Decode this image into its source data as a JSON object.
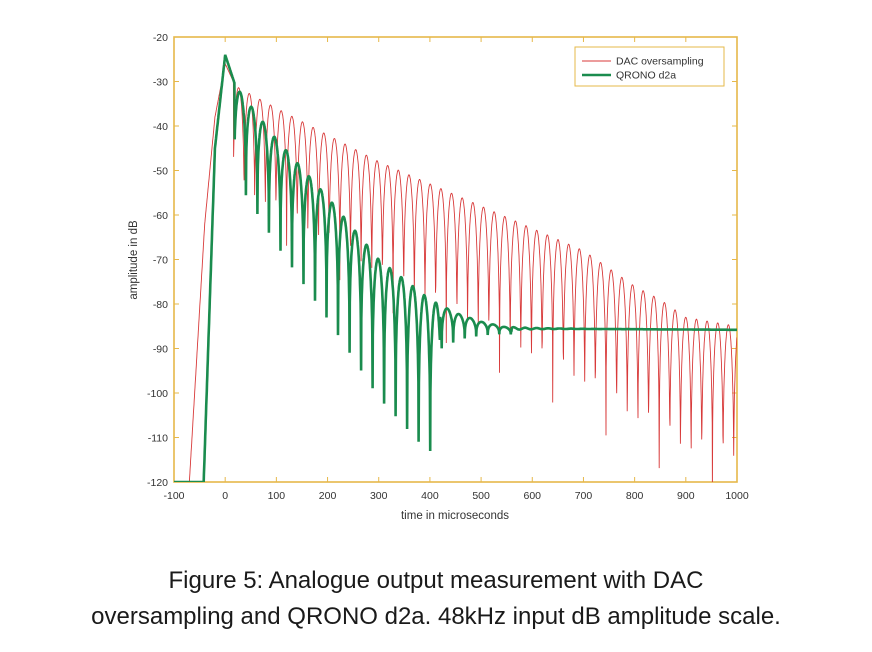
{
  "chart_data": {
    "type": "line",
    "title": "",
    "xlabel": "time in microseconds",
    "ylabel": "amplitude in dB",
    "xlim": [
      -100,
      1000
    ],
    "ylim": [
      -120,
      -20
    ],
    "xticks": [
      -100,
      0,
      100,
      200,
      300,
      400,
      500,
      600,
      700,
      800,
      900,
      1000
    ],
    "yticks": [
      -20,
      -30,
      -40,
      -50,
      -60,
      -70,
      -80,
      -90,
      -100,
      -110,
      -120
    ],
    "grid": false,
    "legend_position": "top-right",
    "series": [
      {
        "name": "DAC oversampling",
        "color": "#d83a3a",
        "description": "decaying ringing envelope ~ -31 dB at 20 us to -85 dB at 1000 us, notches every ~20.8 us",
        "envelope": {
          "x": [
            -70,
            -40,
            -20,
            0,
            20,
            100,
            200,
            300,
            400,
            500,
            600,
            700,
            800,
            850,
            900,
            1000
          ],
          "y": [
            -120,
            -62,
            -38,
            -26,
            -31,
            -36,
            -42,
            -48,
            -53,
            -58,
            -63,
            -68,
            -76,
            -79,
            -83,
            -85
          ]
        },
        "notch_spacing": 20.8
      },
      {
        "name": "QRONO d2a",
        "color": "#1a8c4e",
        "description": "faster decaying ringing settling to about -86 dB after ~560 us",
        "envelope": {
          "x": [
            -42,
            -20,
            0,
            20,
            100,
            200,
            300,
            400,
            450,
            500,
            560,
            1000
          ],
          "y": [
            -120,
            -45,
            -24,
            -31,
            -43,
            -56,
            -70,
            -79,
            -82,
            -84,
            -85.5,
            -85.8
          ]
        },
        "notch_spacing": 22.5
      }
    ]
  },
  "caption": {
    "line1": "Figure 5:  Analogue output measurement with DAC",
    "line2": "oversampling and QRONO d2a. 48kHz input dB amplitude scale."
  }
}
